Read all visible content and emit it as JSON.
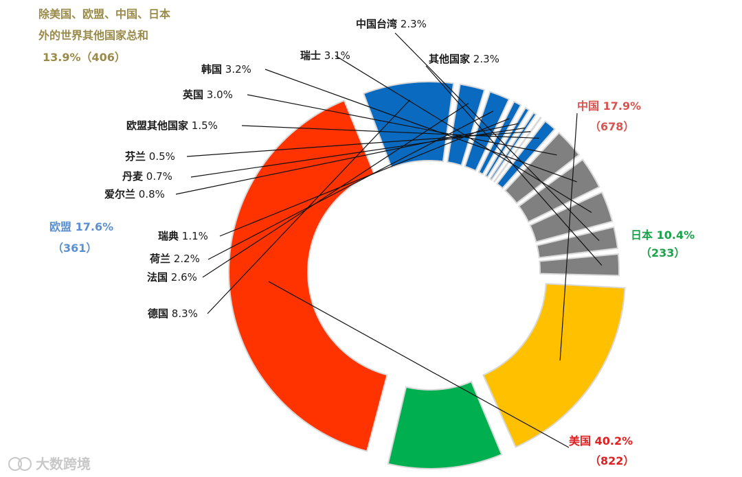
{
  "chart_data": {
    "type": "pie",
    "variant": "exploded-donut",
    "slices": [
      {
        "name": "美国",
        "value": 40.2,
        "count": 822,
        "color": "#ff3300"
      },
      {
        "name": "德国",
        "value": 8.3,
        "color": "#0a6abf"
      },
      {
        "name": "法国",
        "value": 2.6,
        "color": "#0a6abf"
      },
      {
        "name": "荷兰",
        "value": 2.2,
        "color": "#0a6abf"
      },
      {
        "name": "瑞典",
        "value": 1.1,
        "color": "#0a6abf"
      },
      {
        "name": "爱尔兰",
        "value": 0.8,
        "color": "#0a6abf"
      },
      {
        "name": "丹麦",
        "value": 0.7,
        "color": "#0a6abf"
      },
      {
        "name": "芬兰",
        "value": 0.5,
        "color": "#0a6abf"
      },
      {
        "name": "欧盟其他国家",
        "value": 1.5,
        "color": "#0a6abf"
      },
      {
        "name": "英国",
        "value": 3.0,
        "color": "#808080"
      },
      {
        "name": "韩国",
        "value": 3.2,
        "color": "#808080"
      },
      {
        "name": "瑞士",
        "value": 3.1,
        "color": "#808080"
      },
      {
        "name": "中国台湾",
        "value": 2.3,
        "color": "#808080"
      },
      {
        "name": "其他国家",
        "value": 2.3,
        "color": "#808080"
      },
      {
        "name": "中国",
        "value": 17.9,
        "count": 678,
        "color": "#ffc000"
      },
      {
        "name": "日本",
        "value": 10.4,
        "count": 233,
        "color": "#00b050"
      }
    ],
    "group_labels": {
      "eu": {
        "name": "欧盟",
        "pct": "17.6%",
        "count": "361"
      },
      "rest": {
        "line1": "除美国、欧盟、中国、日本",
        "line2": "外的世界其他国家总和",
        "line3": "13.9%（406）"
      }
    }
  },
  "labels": {
    "china_name": "中国",
    "china_pct": "17.9%",
    "china_count": "（678）",
    "japan_name": "日本",
    "japan_pct": "10.4%",
    "japan_count": "（233）",
    "us_name": "美国",
    "us_pct": "40.2%",
    "us_count": "（822）",
    "eu_name": "欧盟",
    "eu_pct": "17.6%",
    "eu_count": "（361）",
    "rest_line1": "除美国、欧盟、中国、日本",
    "rest_line2": "外的世界其他国家总和",
    "rest_line3": "13.9%（406）",
    "germany": "德国",
    "germany_pct": "8.3%",
    "france": "法国",
    "france_pct": "2.6%",
    "netherlands": "荷兰",
    "netherlands_pct": "2.2%",
    "sweden": "瑞典",
    "sweden_pct": "1.1%",
    "ireland": "爱尔兰",
    "ireland_pct": "0.8%",
    "denmark": "丹麦",
    "denmark_pct": "0.7%",
    "finland": "芬兰",
    "finland_pct": "0.5%",
    "eu_other": "欧盟其他国家",
    "eu_other_pct": "1.5%",
    "uk": "英国",
    "uk_pct": "3.0%",
    "korea": "韩国",
    "korea_pct": "3.2%",
    "swiss": "瑞士",
    "swiss_pct": "3.1%",
    "taiwan": "中国台湾",
    "taiwan_pct": "2.3%",
    "others": "其他国家",
    "others_pct": "2.3%",
    "watermark": "大数跨境"
  }
}
